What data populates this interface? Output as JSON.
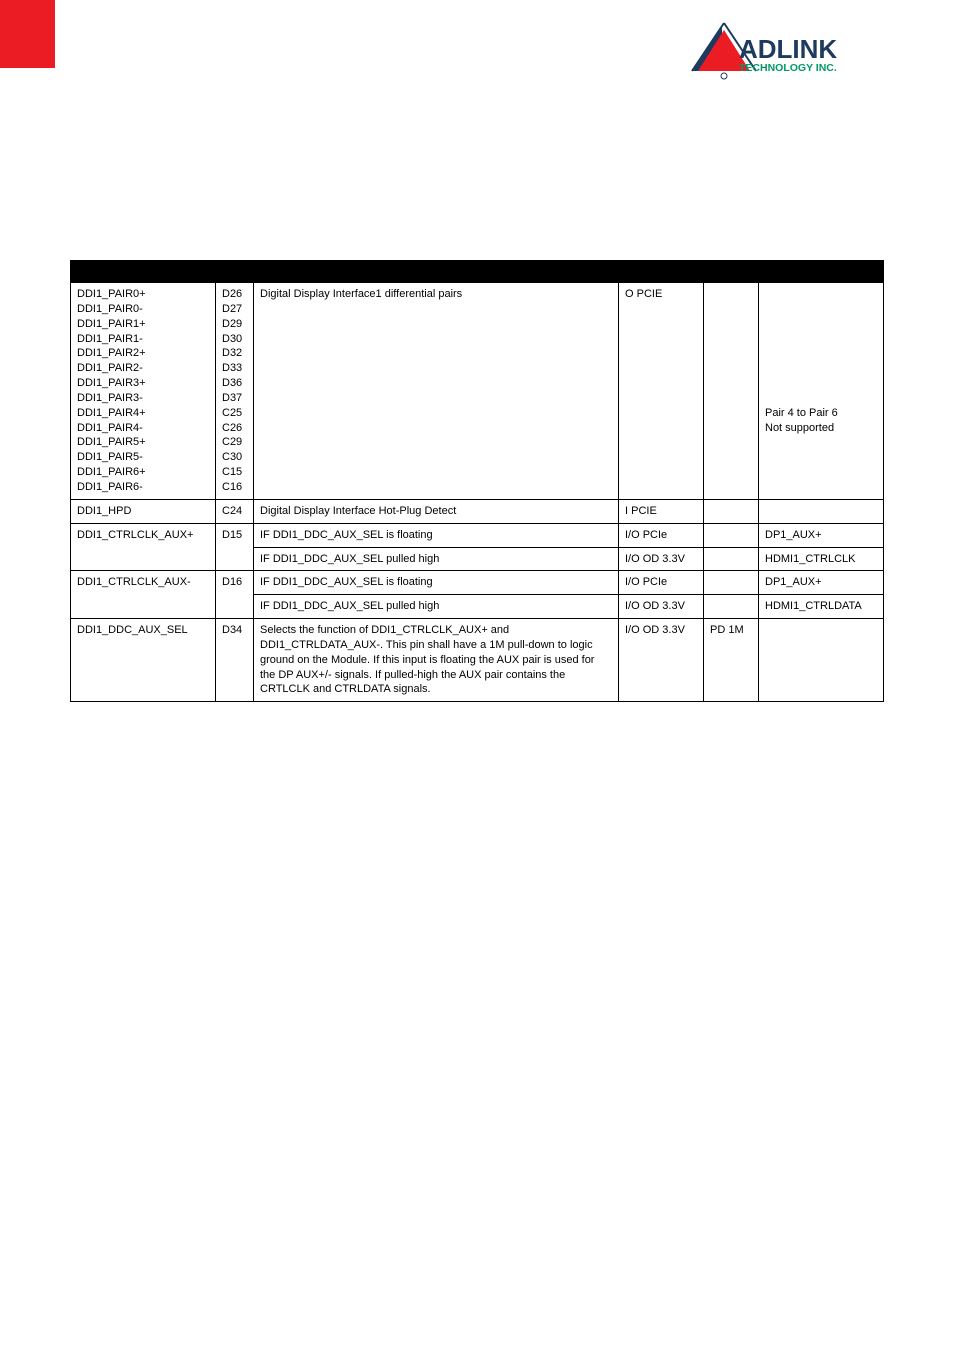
{
  "colors": {
    "redTab": "#eb1c24",
    "headerBg": "#000000",
    "headerFg": "#ffffff",
    "border": "#000000",
    "text": "#000000"
  },
  "logo": {
    "mainText": "ADLINK",
    "subText": "TECHNOLOGY INC.",
    "triangleColor": "#eb1c24",
    "triangleStroke": "#1f3a5f",
    "mainColor": "#1f3a5f",
    "subColor": "#009966"
  },
  "table": {
    "header": [
      "",
      "",
      "",
      "",
      "",
      ""
    ],
    "rows": [
      {
        "signal": "DDI1_PAIR0+\nDDI1_PAIR0-\nDDI1_PAIR1+\nDDI1_PAIR1-\nDDI1_PAIR2+\nDDI1_PAIR2-\nDDI1_PAIR3+\nDDI1_PAIR3-\nDDI1_PAIR4+\nDDI1_PAIR4-\nDDI1_PAIR5+\nDDI1_PAIR5-\nDDI1_PAIR6+\nDDI1_PAIR6-",
        "pin": "D26\nD27\nD29\nD30\nD32\nD33\nD36\nD37\nC25\nC26\nC29\nC30\nC15\nC16",
        "desc": "Digital Display Interface1 differential pairs",
        "type": "O PCIE",
        "term": "",
        "comment": "\n\n\n\n\n\n\n\nPair 4 to Pair 6 \nNot supported"
      },
      {
        "signal": "DDI1_HPD",
        "pin": "C24",
        "desc": "Digital Display Interface Hot-Plug Detect",
        "type": "I PCIE",
        "term": "",
        "comment": ""
      },
      {
        "signal": "DDI1_CTRLCLK_AUX+",
        "pin": "D15",
        "desc": "IF DDI1_DDC_AUX_SEL is floating",
        "type": "I/O PCIe",
        "term": "",
        "comment": "DP1_AUX+",
        "sub": [
          {
            "desc": "IF DDI1_DDC_AUX_SEL pulled high",
            "type": "I/O OD 3.3V",
            "term": "",
            "comment": "HDMI1_CTRLCLK"
          }
        ]
      },
      {
        "signal": "DDI1_CTRLCLK_AUX-",
        "pin": "D16",
        "desc": "IF DDI1_DDC_AUX_SEL is floating",
        "type": "I/O PCIe",
        "term": "",
        "comment": "DP1_AUX+",
        "sub": [
          {
            "desc": "IF DDI1_DDC_AUX_SEL pulled high",
            "type": "I/O OD 3.3V",
            "term": "",
            "comment": "HDMI1_CTRLDATA"
          }
        ]
      },
      {
        "signal": "DDI1_DDC_AUX_SEL",
        "pin": "D34",
        "desc": "Selects the function of DDI1_CTRLCLK_AUX+ and DDI1_CTRLDATA_AUX-. This pin shall have a 1M pull-down to logic ground on the Module. If this input is floating the AUX pair is used for the DP AUX+/- signals. If pulled-high the AUX pair contains the CRTLCLK and CTRLDATA signals.",
        "type": "I/O OD 3.3V",
        "term": "PD 1M",
        "comment": ""
      }
    ]
  }
}
